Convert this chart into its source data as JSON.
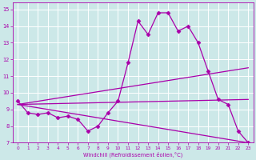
{
  "xlabel": "Windchill (Refroidissement éolien,°C)",
  "bg_color": "#cce8e8",
  "grid_color": "#ffffff",
  "line_color": "#aa00aa",
  "xlim": [
    -0.5,
    23.5
  ],
  "ylim": [
    7,
    15.4
  ],
  "xticks": [
    0,
    1,
    2,
    3,
    4,
    5,
    6,
    7,
    8,
    9,
    10,
    11,
    12,
    13,
    14,
    15,
    16,
    17,
    18,
    19,
    20,
    21,
    22,
    23
  ],
  "yticks": [
    7,
    8,
    9,
    10,
    11,
    12,
    13,
    14,
    15
  ],
  "series": [
    {
      "x": [
        0,
        23
      ],
      "y": [
        9.3,
        11.5
      ],
      "marker": null,
      "linewidth": 0.9
    },
    {
      "x": [
        0,
        23
      ],
      "y": [
        9.3,
        7.0
      ],
      "marker": null,
      "linewidth": 0.9
    },
    {
      "x": [
        0,
        23
      ],
      "y": [
        9.3,
        9.6
      ],
      "marker": null,
      "linewidth": 0.9
    },
    {
      "x": [
        0,
        1,
        2,
        3,
        4,
        5,
        6,
        7,
        8,
        9,
        10,
        11,
        12,
        13,
        14,
        15,
        16,
        17,
        18,
        19,
        20,
        21,
        22,
        23
      ],
      "y": [
        9.5,
        8.8,
        8.7,
        8.8,
        8.5,
        8.6,
        8.4,
        7.7,
        8.0,
        8.8,
        9.5,
        11.8,
        14.3,
        13.5,
        14.8,
        14.8,
        13.7,
        14.0,
        13.0,
        11.3,
        9.6,
        9.3,
        7.7,
        7.0
      ],
      "marker": "D",
      "markersize": 2.5,
      "linewidth": 0.9
    }
  ]
}
